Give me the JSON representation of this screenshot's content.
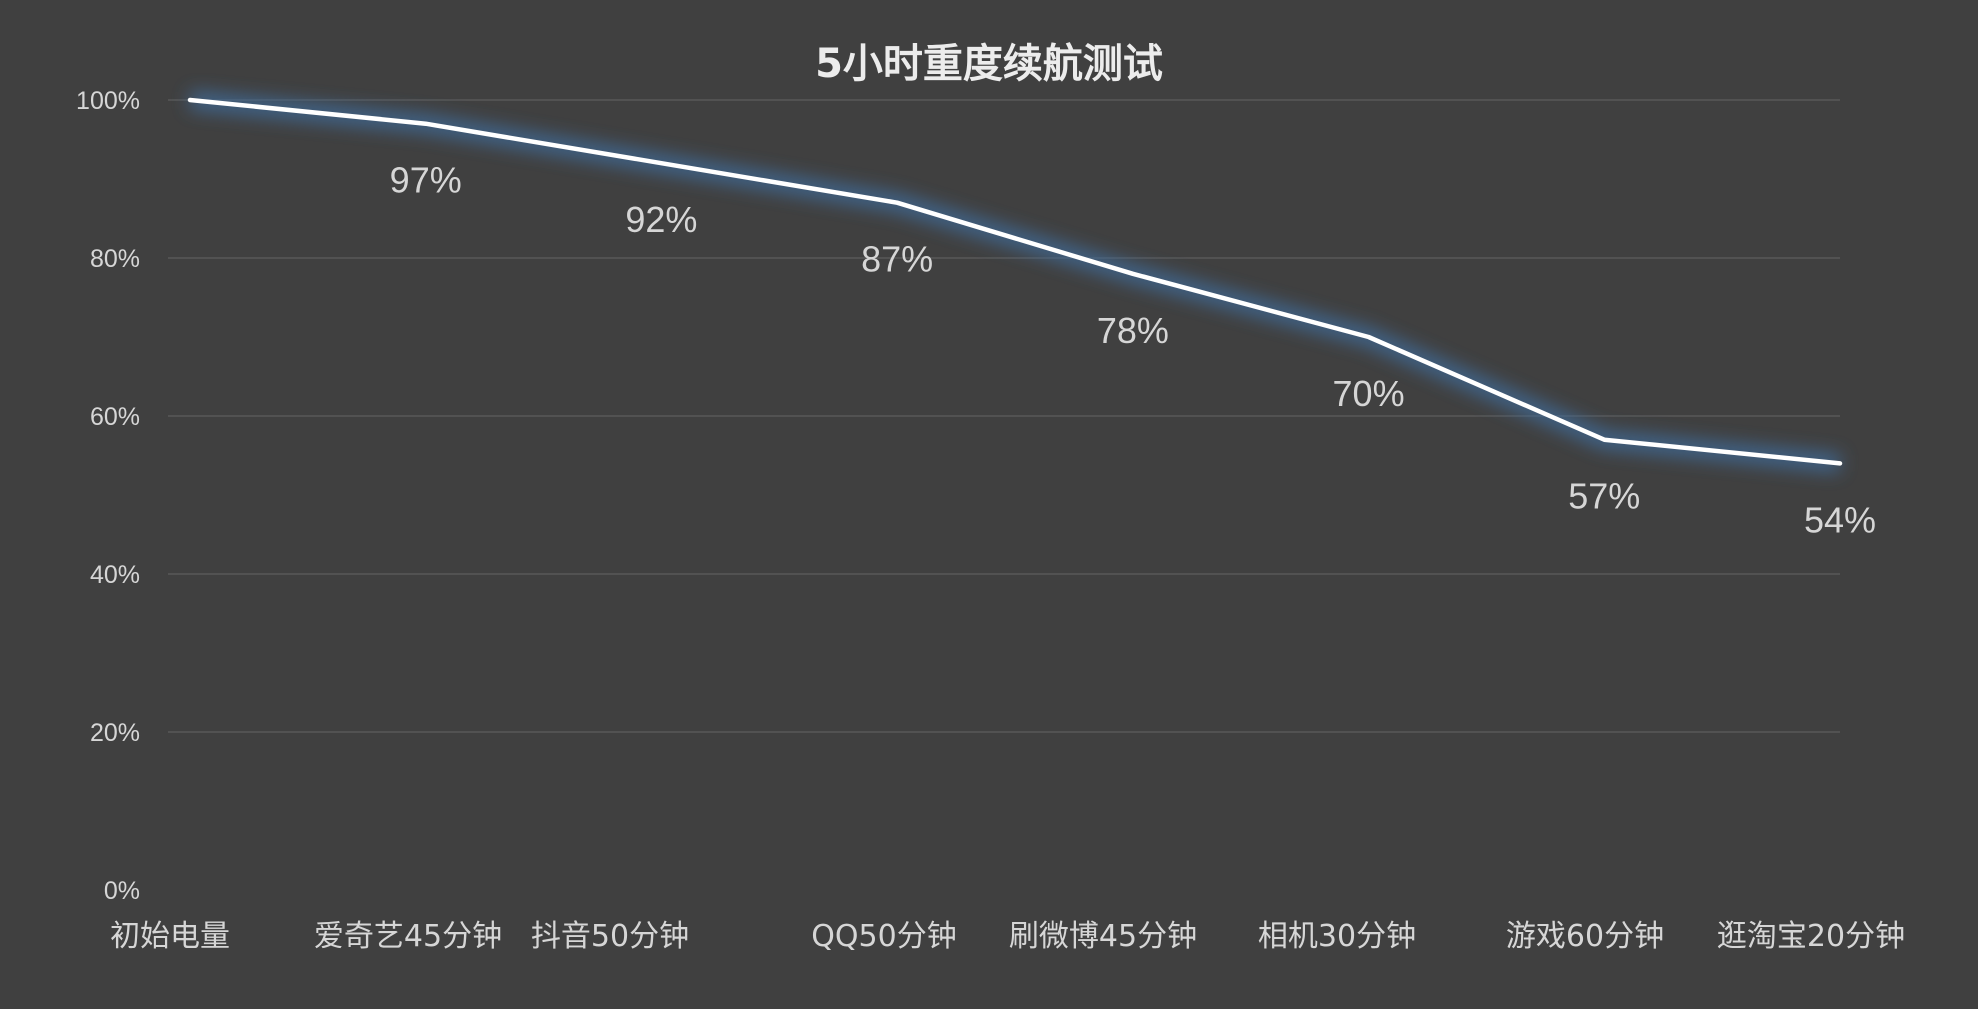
{
  "chart_data": {
    "type": "line",
    "title": "5小时重度续航测试",
    "categories": [
      "初始电量",
      "爱奇艺45分钟",
      "抖音50分钟",
      "QQ50分钟",
      "刷微博45分钟",
      "相机30分钟",
      "游戏60分钟",
      "逛淘宝20分钟"
    ],
    "series": [
      {
        "values": [
          100,
          97,
          92,
          87,
          78,
          70,
          57,
          54
        ]
      }
    ],
    "data_labels": [
      "",
      "97%",
      "92%",
      "87%",
      "78%",
      "70%",
      "57%",
      "54%"
    ],
    "yticks": [
      0,
      20,
      40,
      60,
      80,
      100
    ],
    "ytick_labels": [
      "0%",
      "20%",
      "40%",
      "60%",
      "80%",
      "100%"
    ],
    "ylim": [
      0,
      100
    ],
    "xlabel": "",
    "ylabel": "",
    "grid": true,
    "legend": "none",
    "colors": {
      "background": "#404040",
      "line": "#ffffff",
      "glow": "#3f6d9c",
      "grid": "#5c5c5c",
      "text": "#d6d6d6"
    }
  }
}
